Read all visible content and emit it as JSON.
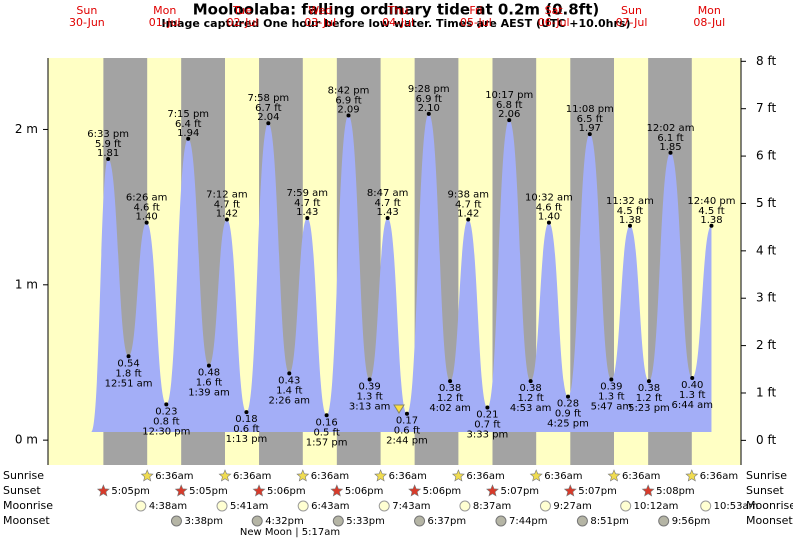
{
  "chart_data": {
    "type": "area",
    "title": "Mooloolaba: falling  ordinary tide at 0.2m (0.8ft)",
    "subtitle": "Image captured One hour before low water. Times are AEST (UTC +10.0hrs)",
    "days": [
      {
        "weekday": "Sun",
        "date": "30-Jun"
      },
      {
        "weekday": "Mon",
        "date": "01-Jul"
      },
      {
        "weekday": "Tue",
        "date": "02-Jul"
      },
      {
        "weekday": "Wed",
        "date": "03-Jul"
      },
      {
        "weekday": "Thu",
        "date": "04-Jul"
      },
      {
        "weekday": "Fri",
        "date": "05-Jul"
      },
      {
        "weekday": "Sat",
        "date": "06-Jul"
      },
      {
        "weekday": "Sun",
        "date": "07-Jul"
      },
      {
        "weekday": "Mon",
        "date": "08-Jul"
      }
    ],
    "x": [
      "6:33 pm",
      "12:51 am",
      "6:26 am",
      "12:30 pm",
      "7:15 pm",
      "1:39 am",
      "7:12 am",
      "1:13 pm",
      "7:58 pm",
      "2:26 am",
      "7:59 am",
      "1:57 pm",
      "8:42 pm",
      "3:13 am",
      "8:47 am",
      "2:44 pm",
      "9:28 pm",
      "4:02 am",
      "9:38 am",
      "3:33 pm",
      "10:17 pm",
      "4:53 am",
      "10:32 am",
      "4:25 pm",
      "11:08 pm",
      "5:47 am",
      "11:32 am",
      "5:23 pm",
      "12:02 am",
      "6:44 am",
      "12:40 pm"
    ],
    "values": [
      1.81,
      0.54,
      1.4,
      0.23,
      1.94,
      0.48,
      1.42,
      0.18,
      2.04,
      0.43,
      1.43,
      0.16,
      2.09,
      0.39,
      1.43,
      0.17,
      2.1,
      0.38,
      1.42,
      0.21,
      2.06,
      0.38,
      1.4,
      0.28,
      1.97,
      0.39,
      1.38,
      0.38,
      1.85,
      0.4,
      1.38
    ],
    "value_labels": [
      "1.81",
      "0.54",
      "1.40",
      "0.23",
      "1.94",
      "0.48",
      "1.42",
      "0.18",
      "2.04",
      "0.43",
      "1.43",
      "0.16",
      "2.09",
      "0.39",
      "1.43",
      "0.17",
      "2.10",
      "0.38",
      "1.42",
      "0.21",
      "2.06",
      "0.38",
      "1.40",
      "0.28",
      "1.97",
      "0.39",
      "1.38",
      "0.38",
      "1.85",
      "0.40",
      "1.38"
    ],
    "ft_labels": [
      "5.9 ft",
      "1.8 ft",
      "4.6 ft",
      "0.8 ft",
      "6.4 ft",
      "1.6 ft",
      "4.7 ft",
      "0.6 ft",
      "6.7 ft",
      "1.4 ft",
      "4.7 ft",
      "0.5 ft",
      "6.9 ft",
      "1.3 ft",
      "4.7 ft",
      "0.6 ft",
      "6.9 ft",
      "1.2 ft",
      "4.7 ft",
      "0.7 ft",
      "6.8 ft",
      "1.2 ft",
      "4.6 ft",
      "0.9 ft",
      "6.5 ft",
      "1.3 ft",
      "4.5 ft",
      "1.2 ft",
      "6.1 ft",
      "1.3 ft",
      "4.5 ft"
    ],
    "color": "#a3aef7",
    "ylim": [
      -0.16,
      2.46
    ],
    "yticks": [
      {
        "value": 0,
        "label": "0 m"
      },
      {
        "value": 1,
        "label": "1 m"
      },
      {
        "value": 2,
        "label": "2 m"
      }
    ],
    "y2lim": [
      -0.52,
      8.07
    ],
    "y2ticks": [
      {
        "value": 0,
        "label": "0 ft"
      },
      {
        "value": 1,
        "label": "1 ft"
      },
      {
        "value": 2,
        "label": "2 ft"
      },
      {
        "value": 3,
        "label": "3 ft"
      },
      {
        "value": 4,
        "label": "4 ft"
      },
      {
        "value": 5,
        "label": "5 ft"
      },
      {
        "value": 6,
        "label": "6 ft"
      },
      {
        "value": 7,
        "label": "7 ft"
      },
      {
        "value": 8,
        "label": "8 ft"
      }
    ],
    "rows": [
      {
        "label": "Sunrise",
        "times": [
          null,
          "6:36am",
          "6:36am",
          "6:36am",
          "6:36am",
          "6:36am",
          "6:36am",
          "6:36am",
          "6:36am"
        ]
      },
      {
        "label": "Sunset",
        "times": [
          "5:05pm",
          "5:05pm",
          "5:06pm",
          "5:06pm",
          "5:06pm",
          "5:07pm",
          "5:07pm",
          "5:08pm",
          null
        ]
      },
      {
        "label": "Moonrise",
        "times": [
          null,
          "4:38am",
          "5:41am",
          "6:43am",
          "7:43am",
          "8:37am",
          "9:27am",
          "10:12am",
          "10:53am"
        ]
      },
      {
        "label": "Moonset",
        "times": [
          null,
          "3:38pm",
          "4:32pm",
          "5:33pm",
          "6:37pm",
          "7:44pm",
          "8:51pm",
          "9:56pm",
          null
        ]
      }
    ],
    "note": "New Moon | 5:17am"
  }
}
